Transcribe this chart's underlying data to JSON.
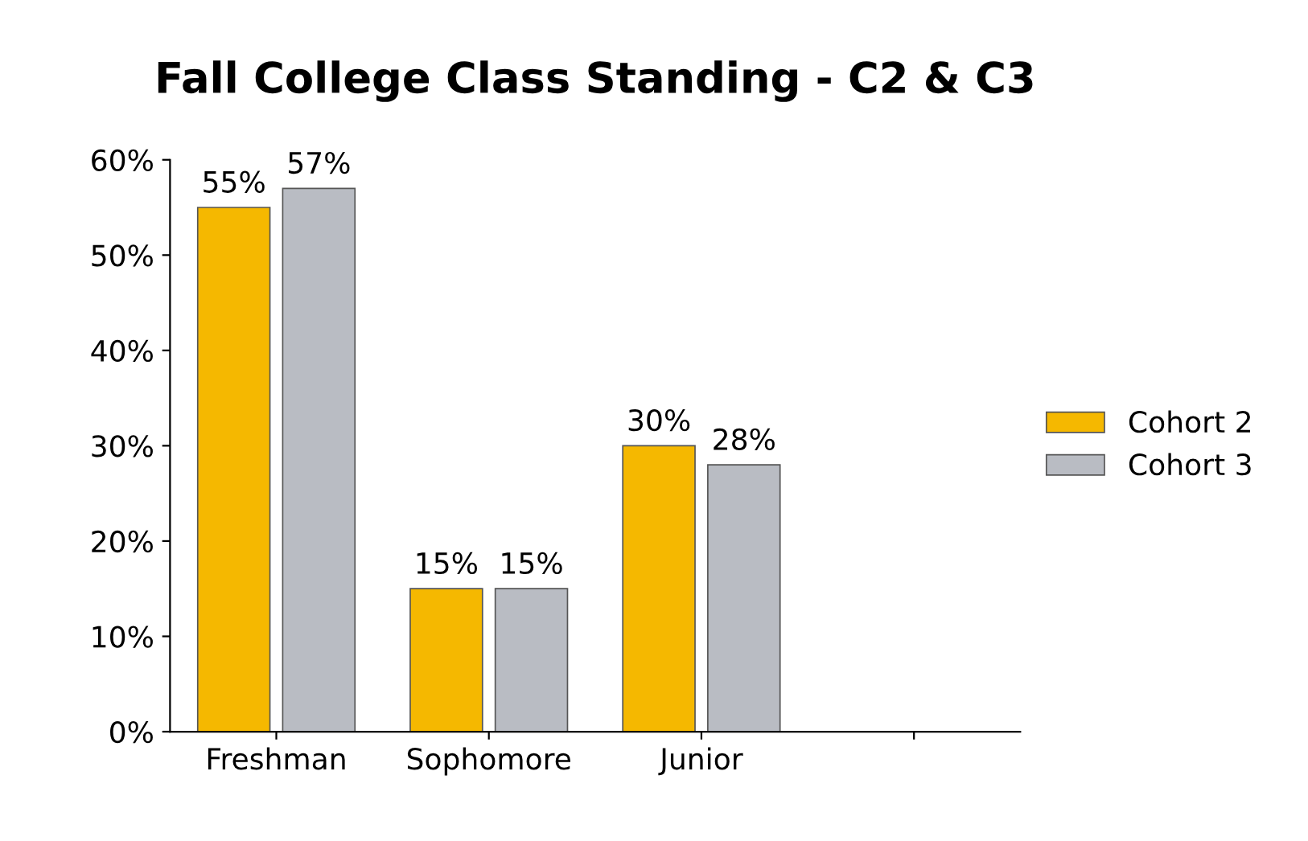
{
  "chart_data": {
    "type": "bar",
    "title": "Fall College Class Standing - C2 & C3",
    "categories": [
      "Freshman",
      "Sophomore",
      "Junior",
      null
    ],
    "series": [
      {
        "name": "Cohort 2",
        "color": "#f5b800",
        "values": [
          55,
          15,
          30,
          null
        ],
        "value_labels": [
          "55%",
          "15%",
          "30%",
          null
        ]
      },
      {
        "name": "Cohort 3",
        "color": "#b9bcc3",
        "values": [
          57,
          15,
          28,
          null
        ],
        "value_labels": [
          "57%",
          "15%",
          "28%",
          null
        ]
      }
    ],
    "ylim": [
      0,
      60
    ],
    "yticks": [
      {
        "value": 0,
        "label": "0%"
      },
      {
        "value": 10,
        "label": "10%"
      },
      {
        "value": 20,
        "label": "20%"
      },
      {
        "value": 30,
        "label": "30%"
      },
      {
        "value": 40,
        "label": "40%"
      },
      {
        "value": 50,
        "label": "50%"
      },
      {
        "value": 60,
        "label": "60%"
      }
    ],
    "grid": false,
    "legend": "right"
  }
}
